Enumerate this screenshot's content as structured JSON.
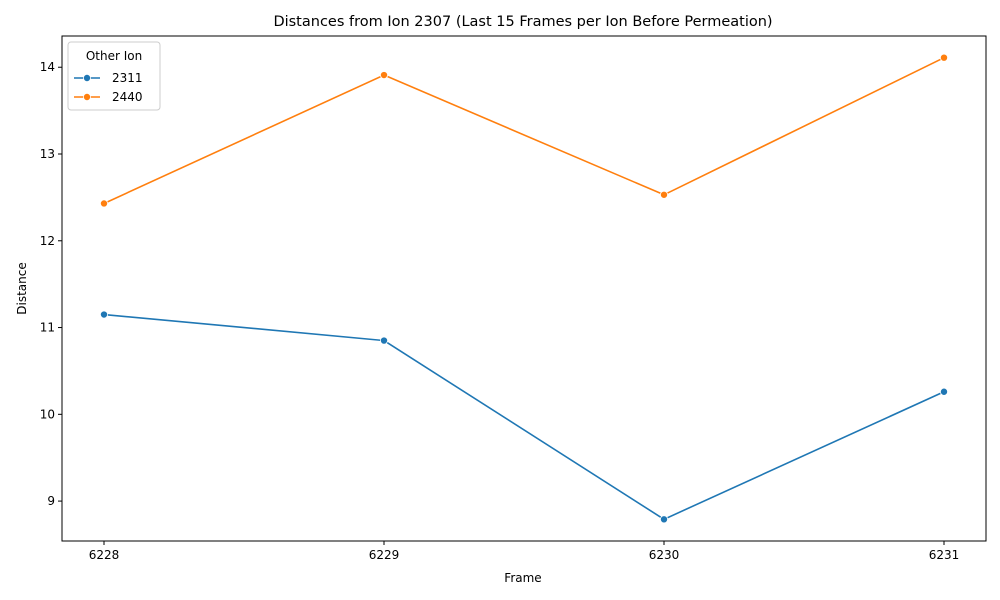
{
  "chart_data": {
    "type": "line",
    "title": "Distances from Ion 2307 (Last 15 Frames per Ion Before Permeation)",
    "xlabel": "Frame",
    "ylabel": "Distance",
    "x": [
      6228,
      6229,
      6230,
      6231
    ],
    "xticks": [
      "6228",
      "6229",
      "6230",
      "6231"
    ],
    "yticks": [
      9,
      10,
      11,
      12,
      13,
      14
    ],
    "ylim": [
      8.54,
      14.36
    ],
    "legend": {
      "title": "Other Ion",
      "placement": "top-left"
    },
    "series": [
      {
        "name": "2311",
        "color": "#1f77b4",
        "values": [
          11.15,
          10.85,
          8.79,
          10.26
        ]
      },
      {
        "name": "2440",
        "color": "#ff7f0e",
        "values": [
          12.43,
          13.91,
          12.53,
          14.11
        ]
      }
    ]
  }
}
